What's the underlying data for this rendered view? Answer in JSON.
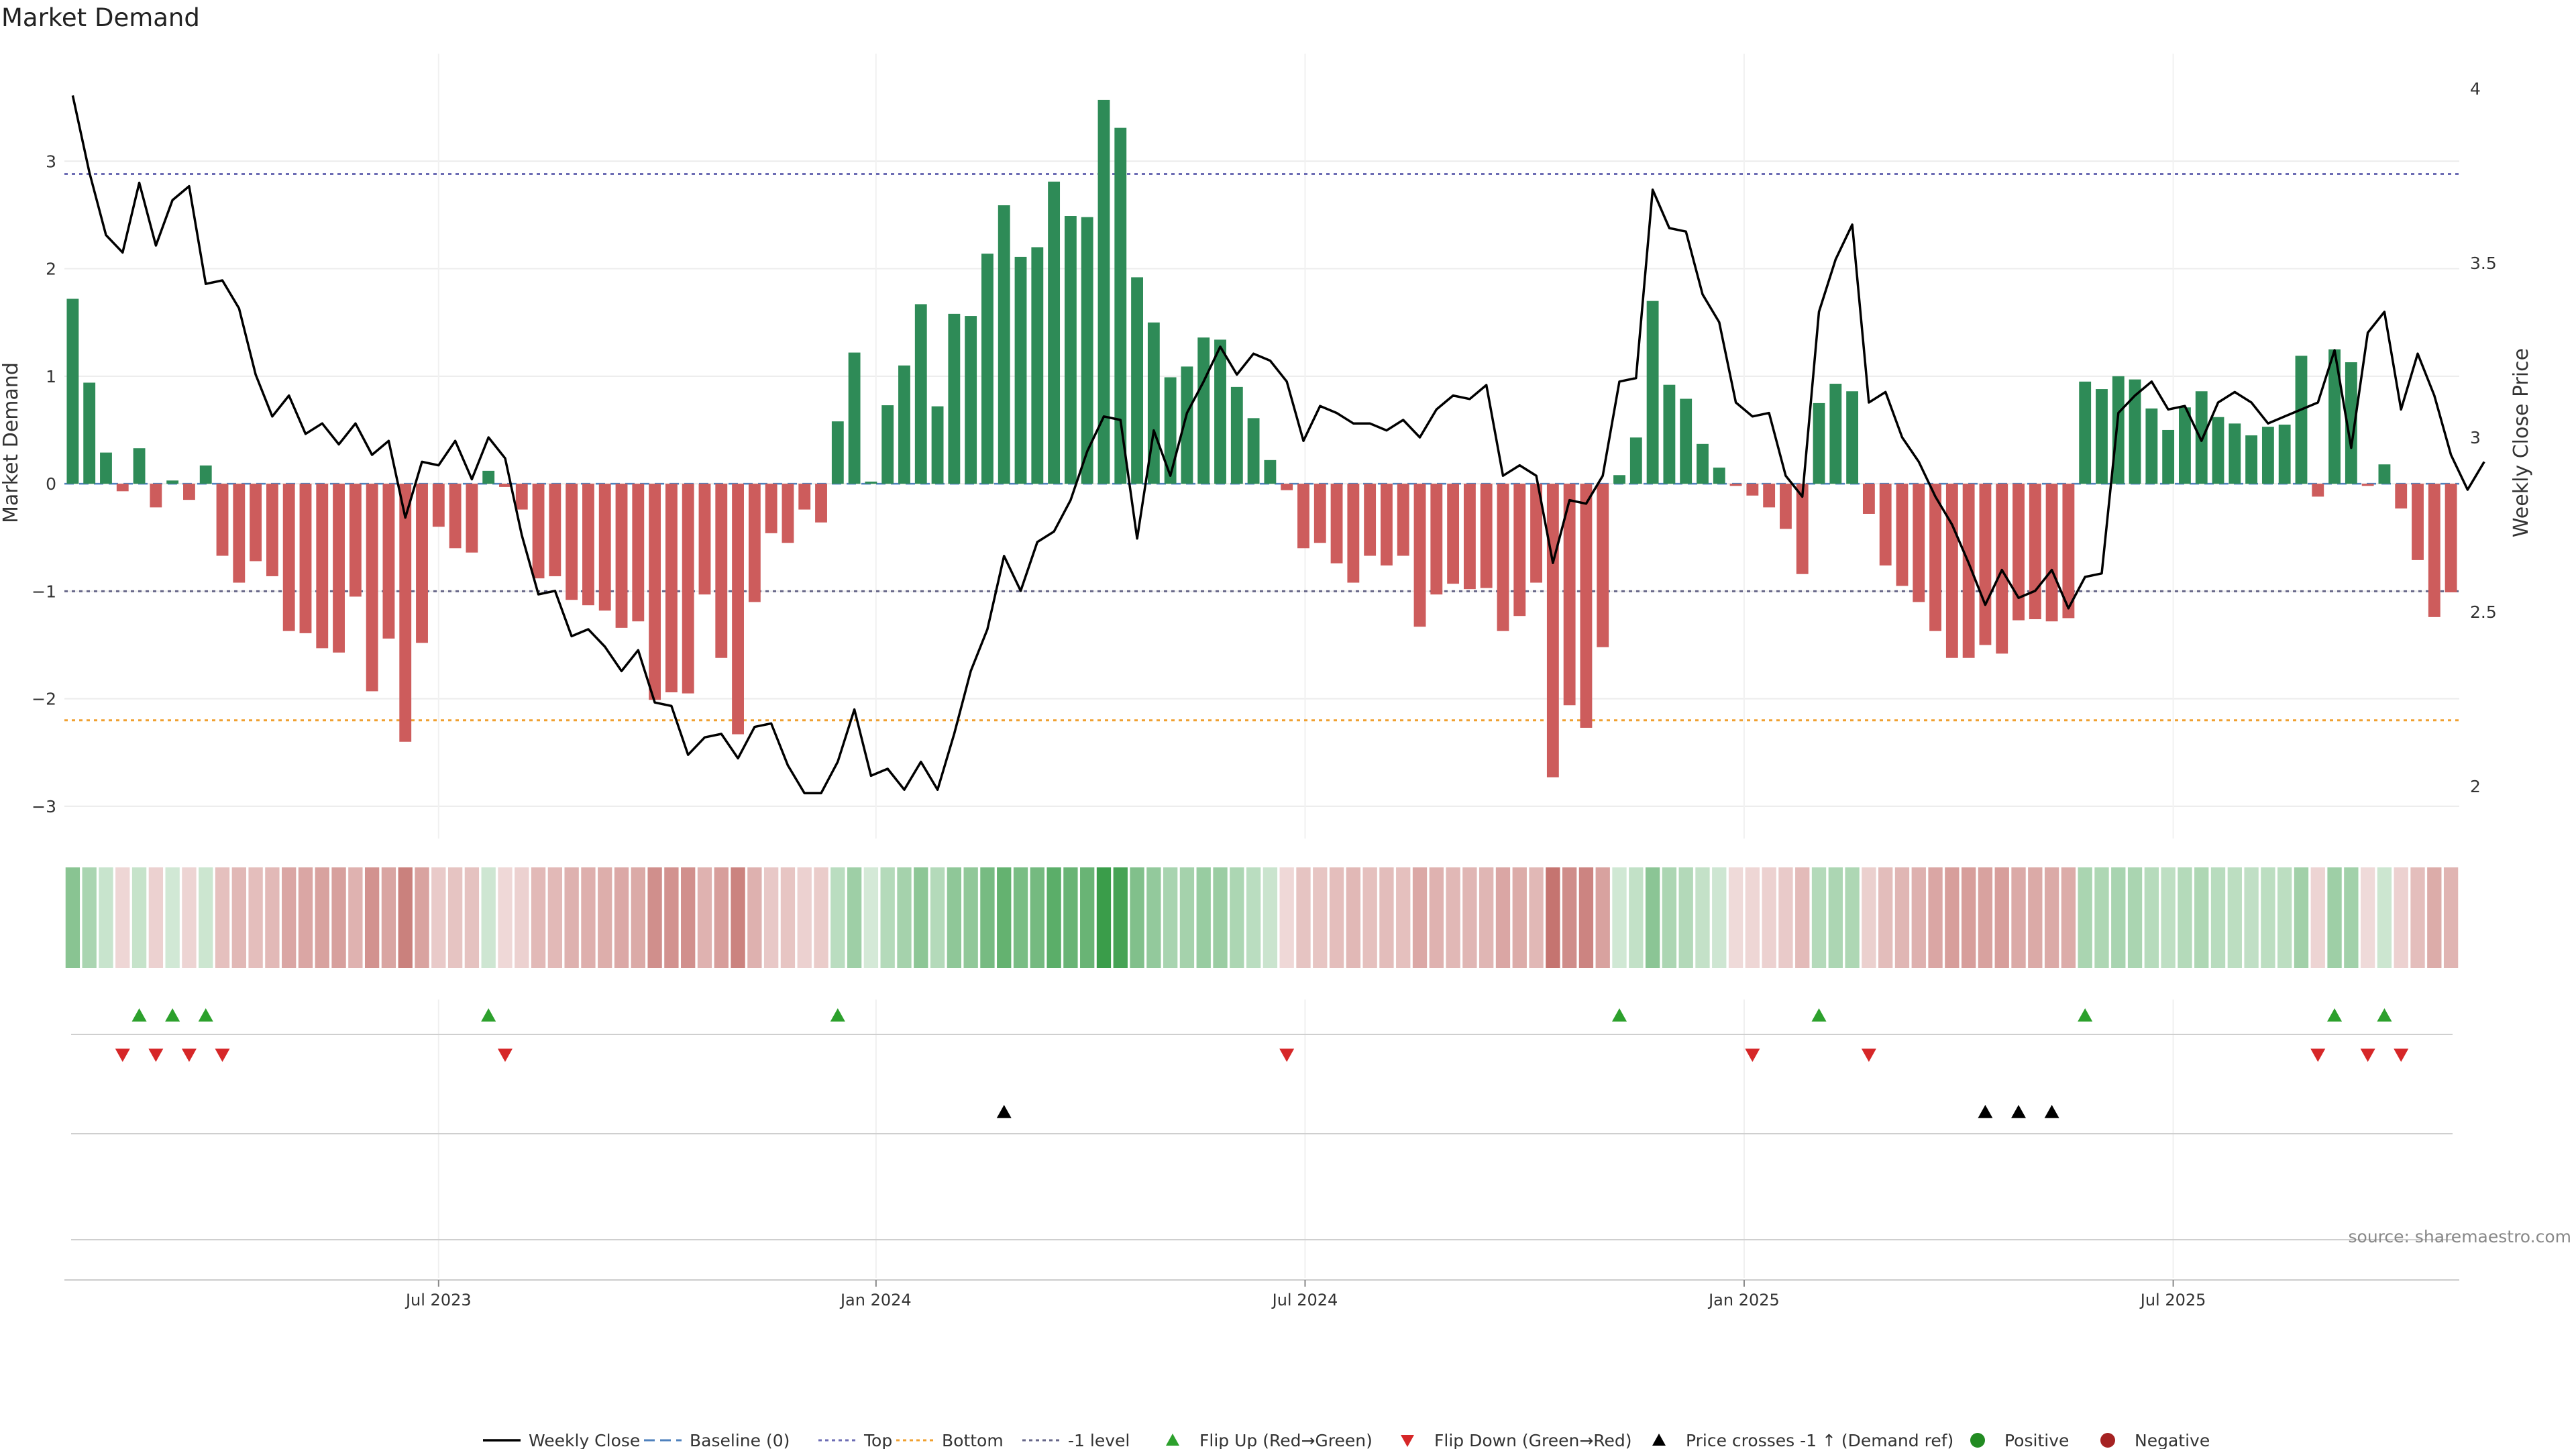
{
  "chart_data": {
    "type": "bar",
    "title": "Market Demand",
    "ylabel_left": "Market Demand",
    "ylabel_right": "Weekly Close Price",
    "ylim_left": [
      -3.3,
      4.0
    ],
    "ylim_right": [
      1.85,
      4.1
    ],
    "yticks_left": [
      -3,
      -2,
      -1,
      0,
      1,
      2,
      3
    ],
    "ytick_labels_left": [
      "−3",
      "−2",
      "−1",
      "0",
      "1",
      "2",
      "3"
    ],
    "yticks_right": [
      2,
      2.5,
      3,
      3.5,
      4
    ],
    "ytick_labels_right": [
      "2",
      "2.5",
      "3",
      "3.5",
      "4"
    ],
    "x_ticks": [
      {
        "label": "Jul 2023",
        "index": 22
      },
      {
        "label": "Jan 2024",
        "index": 48.3
      },
      {
        "label": "Jul 2024",
        "index": 74.1
      },
      {
        "label": "Jan 2025",
        "index": 100.5
      },
      {
        "label": "Jul 2025",
        "index": 126.3
      }
    ],
    "reference_lines": {
      "baseline": 0,
      "top": 2.88,
      "bottom": -2.2,
      "minus_one": -1.0
    },
    "demand": [
      1.72,
      0.94,
      0.29,
      -0.07,
      0.33,
      -0.22,
      0.03,
      -0.15,
      0.17,
      -0.67,
      -0.92,
      -0.72,
      -0.86,
      -1.37,
      -1.39,
      -1.53,
      -1.57,
      -1.05,
      -1.93,
      -1.44,
      -2.4,
      -1.48,
      -0.4,
      -0.6,
      -0.64,
      0.12,
      -0.03,
      -0.24,
      -0.88,
      -0.86,
      -1.08,
      -1.13,
      -1.18,
      -1.34,
      -1.28,
      -2.01,
      -1.94,
      -1.95,
      -1.03,
      -1.62,
      -2.33,
      -1.1,
      -0.46,
      -0.55,
      -0.24,
      -0.36,
      0.58,
      1.22,
      0.02,
      0.73,
      1.1,
      1.67,
      0.72,
      1.58,
      1.56,
      2.14,
      2.59,
      2.11,
      2.2,
      2.81,
      2.49,
      2.48,
      3.57,
      3.31,
      1.92,
      1.5,
      0.99,
      1.09,
      1.36,
      1.34,
      0.9,
      0.61,
      0.22,
      -0.06,
      -0.6,
      -0.55,
      -0.74,
      -0.92,
      -0.67,
      -0.76,
      -0.67,
      -1.33,
      -1.03,
      -0.93,
      -0.98,
      -0.97,
      -1.37,
      -1.23,
      -0.92,
      -2.73,
      -2.06,
      -2.27,
      -1.52,
      0.08,
      0.43,
      1.7,
      0.92,
      0.79,
      0.37,
      0.15,
      -0.02,
      -0.11,
      -0.22,
      -0.42,
      -0.84,
      0.75,
      0.93,
      0.86,
      -0.28,
      -0.76,
      -0.95,
      -1.1,
      -1.37,
      -1.62,
      -1.62,
      -1.5,
      -1.58,
      -1.27,
      -1.26,
      -1.28,
      -1.25,
      0.95,
      0.88,
      1.0,
      0.97,
      0.7,
      0.5,
      0.71,
      0.86,
      0.62,
      0.56,
      0.45,
      0.53,
      0.55,
      1.19,
      -0.12,
      1.25,
      1.13,
      -0.02,
      0.18,
      -0.23,
      -0.71,
      -1.24,
      -1.01
    ],
    "weekly_close": [
      3.98,
      3.76,
      3.58,
      3.53,
      3.73,
      3.55,
      3.68,
      3.72,
      3.44,
      3.45,
      3.37,
      3.18,
      3.06,
      3.12,
      3.01,
      3.04,
      2.98,
      3.04,
      2.95,
      2.99,
      2.77,
      2.93,
      2.92,
      2.99,
      2.88,
      3.0,
      2.94,
      2.72,
      2.55,
      2.56,
      2.43,
      2.45,
      2.4,
      2.33,
      2.39,
      2.24,
      2.23,
      2.09,
      2.14,
      2.15,
      2.08,
      2.17,
      2.18,
      2.06,
      1.98,
      1.98,
      2.07,
      2.22,
      2.03,
      2.05,
      1.99,
      2.07,
      1.99,
      2.15,
      2.33,
      2.45,
      2.66,
      2.56,
      2.7,
      2.73,
      2.82,
      2.96,
      3.06,
      3.05,
      2.71,
      3.02,
      2.89,
      3.07,
      3.16,
      3.26,
      3.18,
      3.24,
      3.22,
      3.16,
      2.99,
      3.09,
      3.07,
      3.04,
      3.04,
      3.02,
      3.05,
      3.0,
      3.08,
      3.12,
      3.11,
      3.15,
      2.89,
      2.92,
      2.89,
      2.64,
      2.82,
      2.81,
      2.89,
      3.16,
      3.17,
      3.71,
      3.6,
      3.59,
      3.41,
      3.33,
      3.1,
      3.06,
      3.07,
      2.89,
      2.83,
      3.36,
      3.51,
      3.61,
      3.1,
      3.13,
      3.0,
      2.93,
      2.83,
      2.75,
      2.64,
      2.52,
      2.62,
      2.54,
      2.56,
      2.62,
      2.51,
      2.6,
      2.61,
      3.07,
      3.12,
      3.16,
      3.08,
      3.09,
      2.99,
      3.1,
      3.13,
      3.1,
      3.04,
      3.06,
      3.08,
      3.1,
      3.25,
      2.97,
      3.3,
      3.36,
      3.08,
      3.24,
      3.12,
      2.95,
      2.85,
      2.93
    ],
    "signals": {
      "flip_up": [
        4,
        6,
        8,
        25,
        46,
        93,
        105,
        121,
        136,
        139
      ],
      "flip_down": [
        3,
        5,
        7,
        9,
        26,
        73,
        101,
        108,
        135,
        138,
        140
      ],
      "price_cross_up": [
        56,
        115,
        117,
        119
      ]
    },
    "legend": [
      {
        "key": "weekly_close",
        "label": "Weekly Close",
        "color": "#000000"
      },
      {
        "key": "baseline",
        "label": "Baseline (0)",
        "color": "#4f81bd"
      },
      {
        "key": "top",
        "label": "Top",
        "color": "#6c6cb4"
      },
      {
        "key": "bottom",
        "label": "Bottom",
        "color": "#f0a030"
      },
      {
        "key": "minus_one",
        "label": "-1 level",
        "color": "#666688"
      },
      {
        "key": "flip_up",
        "label": "Flip Up (Red→Green)",
        "color": "#2ca02c"
      },
      {
        "key": "flip_down",
        "label": "Flip Down (Green→Red)",
        "color": "#d62728"
      },
      {
        "key": "price_cross",
        "label": "Price crosses -1 ↑ (Demand ref)",
        "color": "#000000"
      },
      {
        "key": "positive",
        "label": "Positive",
        "color": "#228b22"
      },
      {
        "key": "negative",
        "label": "Negative",
        "color": "#a52222"
      }
    ],
    "source": "source: sharemaestro.com",
    "colors": {
      "positive_bar": "#2e8b57",
      "negative_bar": "#cd5c5c",
      "heat_positive": "#3a9d4a",
      "heat_negative": "#b85550"
    }
  }
}
